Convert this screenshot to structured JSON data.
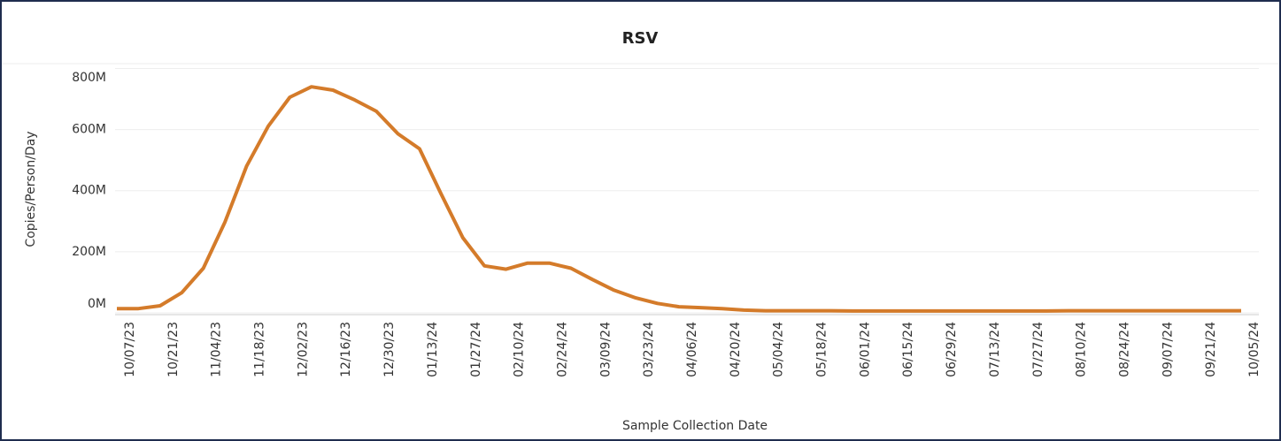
{
  "chart_data": {
    "type": "line",
    "title": "RSV",
    "x_label": "Sample Collection Date",
    "y_label": "Copies/Person/Day",
    "categories": [
      "10/07/23",
      null,
      "10/21/23",
      null,
      "11/04/23",
      null,
      "11/18/23",
      null,
      "12/02/23",
      null,
      "12/16/23",
      null,
      "12/30/23",
      null,
      "01/13/24",
      null,
      "01/27/24",
      null,
      "02/10/24",
      null,
      "02/24/24",
      null,
      "03/09/24",
      null,
      "03/23/24",
      null,
      "04/06/24",
      null,
      "04/20/24",
      null,
      "05/04/24",
      null,
      "05/18/24",
      null,
      "06/01/24",
      null,
      "06/15/24",
      null,
      "06/29/24",
      null,
      "07/13/24",
      null,
      "07/27/24",
      null,
      "08/10/24",
      null,
      "08/24/24",
      null,
      "09/07/24",
      null,
      "09/21/24",
      null,
      "10/05/24"
    ],
    "series": [
      {
        "name": "RSV",
        "color": "#d47b2a",
        "values": [
          14,
          14,
          23,
          66,
          146,
          297,
          480,
          611,
          706,
          740,
          729,
          697,
          660,
          586,
          537,
          389,
          246,
          154,
          143,
          163,
          163,
          146,
          109,
          74,
          49,
          31,
          20,
          17,
          14,
          9,
          7,
          7,
          7,
          7,
          6,
          6,
          6,
          6,
          6,
          6,
          6,
          6,
          6,
          6,
          7,
          7,
          7,
          7,
          7,
          7,
          7,
          7,
          7
        ]
      }
    ],
    "ylim": [
      0,
      810
    ],
    "yticks": [
      {
        "value": 0,
        "label": "0M"
      },
      {
        "value": 200,
        "label": "200M"
      },
      {
        "value": 400,
        "label": "400M"
      },
      {
        "value": 600,
        "label": "600M"
      },
      {
        "value": 800,
        "label": "800M"
      }
    ],
    "grid": true
  }
}
